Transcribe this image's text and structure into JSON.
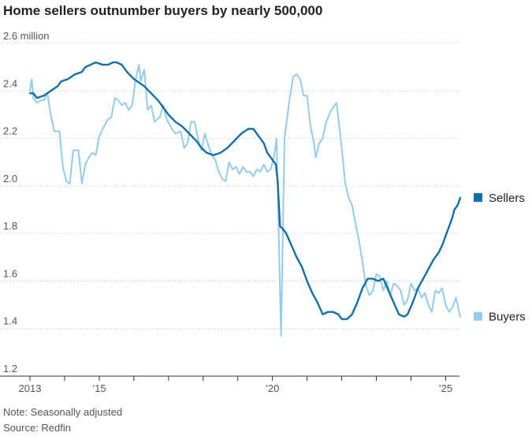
{
  "chart_data": {
    "type": "line",
    "title": "Home sellers outnumber buyers by nearly 500,000",
    "xlabel": "",
    "ylabel": "",
    "xlim": [
      2013,
      2025.4
    ],
    "ylim": [
      1.2,
      2.6
    ],
    "y_ticks": [
      {
        "value": 2.6,
        "label": "2.6 million"
      },
      {
        "value": 2.4,
        "label": "2.4"
      },
      {
        "value": 2.2,
        "label": "2.2"
      },
      {
        "value": 2.0,
        "label": "2.0"
      },
      {
        "value": 1.8,
        "label": "1.8"
      },
      {
        "value": 1.6,
        "label": "1.6"
      },
      {
        "value": 1.4,
        "label": "1.4"
      },
      {
        "value": 1.2,
        "label": "1.2"
      }
    ],
    "x_ticks": [
      {
        "value": 2013,
        "label": "2013"
      },
      {
        "value": 2014,
        "label": ""
      },
      {
        "value": 2015,
        "label": "’15"
      },
      {
        "value": 2016,
        "label": ""
      },
      {
        "value": 2017,
        "label": ""
      },
      {
        "value": 2018,
        "label": ""
      },
      {
        "value": 2019,
        "label": ""
      },
      {
        "value": 2020,
        "label": "’20"
      },
      {
        "value": 2021,
        "label": ""
      },
      {
        "value": 2022,
        "label": ""
      },
      {
        "value": 2023,
        "label": ""
      },
      {
        "value": 2024,
        "label": ""
      },
      {
        "value": 2025,
        "label": "’25"
      }
    ],
    "legend_position": "right, at line ends",
    "series": [
      {
        "name": "Sellers",
        "color": "#1170aa",
        "points": [
          [
            2013.0,
            2.39
          ],
          [
            2013.1,
            2.39
          ],
          [
            2013.2,
            2.37
          ],
          [
            2013.4,
            2.38
          ],
          [
            2013.6,
            2.4
          ],
          [
            2013.8,
            2.42
          ],
          [
            2013.9,
            2.44
          ],
          [
            2014.1,
            2.45
          ],
          [
            2014.3,
            2.47
          ],
          [
            2014.5,
            2.48
          ],
          [
            2014.6,
            2.5
          ],
          [
            2014.75,
            2.51
          ],
          [
            2014.9,
            2.52
          ],
          [
            2015.1,
            2.51
          ],
          [
            2015.25,
            2.51
          ],
          [
            2015.4,
            2.52
          ],
          [
            2015.5,
            2.52
          ],
          [
            2015.65,
            2.51
          ],
          [
            2015.8,
            2.48
          ],
          [
            2016.0,
            2.45
          ],
          [
            2016.2,
            2.43
          ],
          [
            2016.3,
            2.42
          ],
          [
            2016.5,
            2.39
          ],
          [
            2016.7,
            2.36
          ],
          [
            2016.85,
            2.33
          ],
          [
            2017.0,
            2.3
          ],
          [
            2017.2,
            2.27
          ],
          [
            2017.4,
            2.25
          ],
          [
            2017.6,
            2.22
          ],
          [
            2017.8,
            2.19
          ],
          [
            2017.95,
            2.16
          ],
          [
            2018.1,
            2.14
          ],
          [
            2018.3,
            2.13
          ],
          [
            2018.5,
            2.14
          ],
          [
            2018.7,
            2.16
          ],
          [
            2018.9,
            2.19
          ],
          [
            2019.1,
            2.22
          ],
          [
            2019.3,
            2.24
          ],
          [
            2019.45,
            2.24
          ],
          [
            2019.6,
            2.21
          ],
          [
            2019.75,
            2.18
          ],
          [
            2019.85,
            2.14
          ],
          [
            2020.0,
            2.11
          ],
          [
            2020.1,
            2.09
          ],
          [
            2020.15,
            2.02
          ],
          [
            2020.22,
            1.83
          ],
          [
            2020.3,
            1.82
          ],
          [
            2020.4,
            1.8
          ],
          [
            2020.55,
            1.75
          ],
          [
            2020.7,
            1.7
          ],
          [
            2020.85,
            1.66
          ],
          [
            2021.0,
            1.6
          ],
          [
            2021.15,
            1.55
          ],
          [
            2021.3,
            1.51
          ],
          [
            2021.45,
            1.46
          ],
          [
            2021.6,
            1.47
          ],
          [
            2021.75,
            1.47
          ],
          [
            2021.9,
            1.46
          ],
          [
            2022.0,
            1.44
          ],
          [
            2022.15,
            1.44
          ],
          [
            2022.3,
            1.46
          ],
          [
            2022.45,
            1.51
          ],
          [
            2022.6,
            1.57
          ],
          [
            2022.75,
            1.61
          ],
          [
            2022.9,
            1.61
          ],
          [
            2023.05,
            1.6
          ],
          [
            2023.2,
            1.61
          ],
          [
            2023.35,
            1.56
          ],
          [
            2023.5,
            1.51
          ],
          [
            2023.65,
            1.46
          ],
          [
            2023.8,
            1.45
          ],
          [
            2023.9,
            1.46
          ],
          [
            2024.05,
            1.51
          ],
          [
            2024.2,
            1.57
          ],
          [
            2024.35,
            1.61
          ],
          [
            2024.5,
            1.65
          ],
          [
            2024.65,
            1.69
          ],
          [
            2024.8,
            1.72
          ],
          [
            2024.9,
            1.75
          ],
          [
            2025.0,
            1.79
          ],
          [
            2025.1,
            1.83
          ],
          [
            2025.2,
            1.87
          ],
          [
            2025.25,
            1.9
          ],
          [
            2025.35,
            1.92
          ],
          [
            2025.42,
            1.95
          ]
        ]
      },
      {
        "name": "Buyers",
        "color": "#95cbee",
        "points": [
          [
            2013.0,
            2.4
          ],
          [
            2013.05,
            2.45
          ],
          [
            2013.1,
            2.37
          ],
          [
            2013.2,
            2.35
          ],
          [
            2013.3,
            2.36
          ],
          [
            2013.4,
            2.36
          ],
          [
            2013.5,
            2.39
          ],
          [
            2013.6,
            2.3
          ],
          [
            2013.7,
            2.23
          ],
          [
            2013.85,
            2.23
          ],
          [
            2013.95,
            2.08
          ],
          [
            2014.05,
            2.02
          ],
          [
            2014.15,
            2.01
          ],
          [
            2014.25,
            2.15
          ],
          [
            2014.4,
            2.15
          ],
          [
            2014.5,
            2.01
          ],
          [
            2014.6,
            2.09
          ],
          [
            2014.7,
            2.12
          ],
          [
            2014.8,
            2.14
          ],
          [
            2014.9,
            2.13
          ],
          [
            2015.0,
            2.21
          ],
          [
            2015.1,
            2.24
          ],
          [
            2015.25,
            2.28
          ],
          [
            2015.35,
            2.29
          ],
          [
            2015.45,
            2.37
          ],
          [
            2015.55,
            2.36
          ],
          [
            2015.65,
            2.34
          ],
          [
            2015.75,
            2.35
          ],
          [
            2015.85,
            2.32
          ],
          [
            2015.95,
            2.34
          ],
          [
            2016.05,
            2.45
          ],
          [
            2016.15,
            2.51
          ],
          [
            2016.2,
            2.44
          ],
          [
            2016.3,
            2.49
          ],
          [
            2016.4,
            2.32
          ],
          [
            2016.5,
            2.34
          ],
          [
            2016.6,
            2.27
          ],
          [
            2016.75,
            2.29
          ],
          [
            2016.85,
            2.34
          ],
          [
            2016.95,
            2.28
          ],
          [
            2017.1,
            2.24
          ],
          [
            2017.2,
            2.22
          ],
          [
            2017.35,
            2.23
          ],
          [
            2017.45,
            2.16
          ],
          [
            2017.55,
            2.18
          ],
          [
            2017.65,
            2.27
          ],
          [
            2017.75,
            2.27
          ],
          [
            2017.85,
            2.2
          ],
          [
            2017.95,
            2.15
          ],
          [
            2018.05,
            2.22
          ],
          [
            2018.15,
            2.17
          ],
          [
            2018.25,
            2.13
          ],
          [
            2018.35,
            2.11
          ],
          [
            2018.45,
            2.06
          ],
          [
            2018.55,
            2.03
          ],
          [
            2018.65,
            2.02
          ],
          [
            2018.75,
            2.1
          ],
          [
            2018.85,
            2.07
          ],
          [
            2018.95,
            2.08
          ],
          [
            2019.05,
            2.05
          ],
          [
            2019.15,
            2.08
          ],
          [
            2019.25,
            2.06
          ],
          [
            2019.35,
            2.06
          ],
          [
            2019.45,
            2.04
          ],
          [
            2019.55,
            2.07
          ],
          [
            2019.65,
            2.06
          ],
          [
            2019.75,
            2.09
          ],
          [
            2019.85,
            2.06
          ],
          [
            2019.95,
            2.07
          ],
          [
            2020.05,
            2.13
          ],
          [
            2020.12,
            2.2
          ],
          [
            2020.15,
            1.99
          ],
          [
            2020.25,
            1.37
          ],
          [
            2020.35,
            2.2
          ],
          [
            2020.5,
            2.37
          ],
          [
            2020.6,
            2.46
          ],
          [
            2020.7,
            2.47
          ],
          [
            2020.8,
            2.45
          ],
          [
            2020.9,
            2.38
          ],
          [
            2021.0,
            2.38
          ],
          [
            2021.1,
            2.25
          ],
          [
            2021.2,
            2.18
          ],
          [
            2021.25,
            2.12
          ],
          [
            2021.35,
            2.18
          ],
          [
            2021.45,
            2.2
          ],
          [
            2021.55,
            2.27
          ],
          [
            2021.7,
            2.32
          ],
          [
            2021.85,
            2.35
          ],
          [
            2022.0,
            2.16
          ],
          [
            2022.1,
            2.01
          ],
          [
            2022.2,
            1.95
          ],
          [
            2022.3,
            1.92
          ],
          [
            2022.4,
            1.84
          ],
          [
            2022.5,
            1.77
          ],
          [
            2022.6,
            1.68
          ],
          [
            2022.7,
            1.58
          ],
          [
            2022.8,
            1.54
          ],
          [
            2022.9,
            1.56
          ],
          [
            2023.0,
            1.63
          ],
          [
            2023.1,
            1.62
          ],
          [
            2023.2,
            1.56
          ],
          [
            2023.3,
            1.6
          ],
          [
            2023.4,
            1.54
          ],
          [
            2023.5,
            1.59
          ],
          [
            2023.6,
            1.58
          ],
          [
            2023.7,
            1.56
          ],
          [
            2023.8,
            1.5
          ],
          [
            2023.9,
            1.52
          ],
          [
            2024.0,
            1.59
          ],
          [
            2024.1,
            1.56
          ],
          [
            2024.2,
            1.57
          ],
          [
            2024.3,
            1.53
          ],
          [
            2024.4,
            1.55
          ],
          [
            2024.5,
            1.5
          ],
          [
            2024.6,
            1.47
          ],
          [
            2024.7,
            1.56
          ],
          [
            2024.8,
            1.55
          ],
          [
            2024.9,
            1.57
          ],
          [
            2025.0,
            1.5
          ],
          [
            2025.1,
            1.47
          ],
          [
            2025.2,
            1.49
          ],
          [
            2025.3,
            1.53
          ],
          [
            2025.42,
            1.45
          ]
        ]
      }
    ]
  },
  "footer": {
    "note": "Note: Seasonally adjusted",
    "source": "Source: Redfin"
  }
}
